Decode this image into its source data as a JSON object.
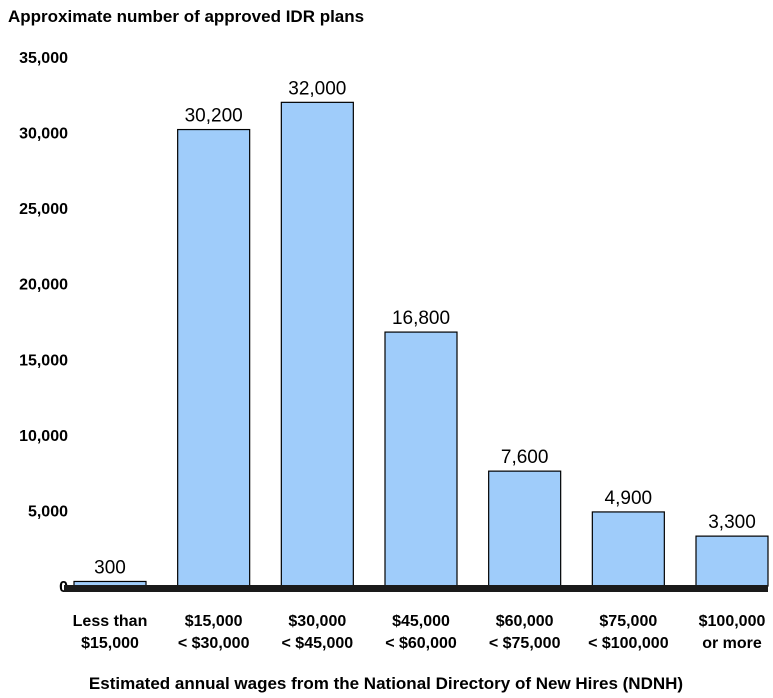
{
  "chart_data": {
    "type": "bar",
    "title": "",
    "ylabel": "Approximate number of approved IDR plans",
    "xlabel": "Estimated annual wages from the National Directory of New Hires (NDNH)",
    "categories": [
      [
        "Less than",
        "$15,000"
      ],
      [
        "$15,000",
        "< $30,000"
      ],
      [
        "$30,000",
        "< $45,000"
      ],
      [
        "$45,000",
        "< $60,000"
      ],
      [
        "$60,000",
        "< $75,000"
      ],
      [
        "$75,000",
        "< $100,000"
      ],
      [
        "$100,000",
        "or more"
      ]
    ],
    "values": [
      300,
      30200,
      32000,
      16800,
      7600,
      4900,
      3300
    ],
    "value_labels": [
      "300",
      "30,200",
      "32,000",
      "16,800",
      "7,600",
      "4,900",
      "3,300"
    ],
    "ylim": [
      0,
      35000
    ],
    "yticks": [
      0,
      5000,
      10000,
      15000,
      20000,
      25000,
      30000,
      35000
    ],
    "ytick_labels": [
      "0",
      "5,000",
      "10,000",
      "15,000",
      "20,000",
      "25,000",
      "30,000",
      "35,000"
    ],
    "grid": false,
    "colors": {
      "bar": "#9fccfa",
      "outline": "#000000",
      "baseline": "#1a1a1a"
    }
  }
}
